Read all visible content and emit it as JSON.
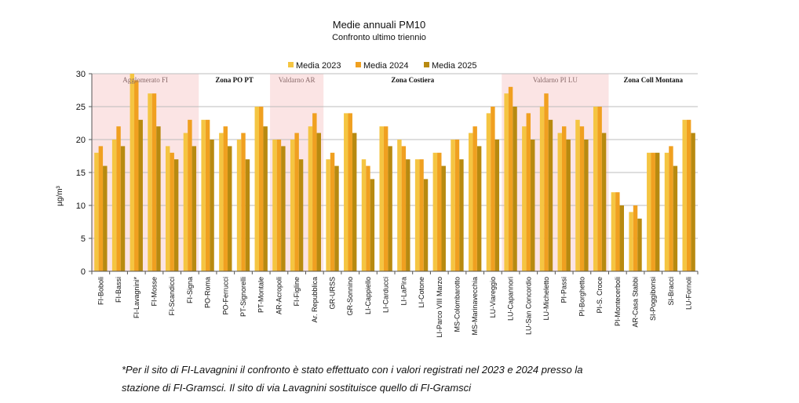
{
  "chart_data": {
    "type": "bar",
    "title": "Medie annuali PM10",
    "subtitle": "Confronto ultimo triennio",
    "ylabel": "µg/m³",
    "ylim": [
      0,
      30
    ],
    "yticks": [
      0,
      5,
      10,
      15,
      20,
      25,
      30
    ],
    "grid": true,
    "legend_position": "top",
    "categories": [
      "FI-Boboli",
      "FI-Bassi",
      "FI-Lavagnini*",
      "FI-Mosse",
      "FI-Scandicci",
      "FI-Signa",
      "PO-Roma",
      "PO-Ferrucci",
      "PT-Signorelli",
      "PT-Montale",
      "AR-Acropoli",
      "FI-Figline",
      "Ar. Repubblica",
      "GR-URSS",
      "GR-Sonnino",
      "LI-Cappiello",
      "LI-Carducci",
      "LI-LaPira",
      "LI-Cotone",
      "LI-Parco VIII Marzo",
      "MS-Colombarotto",
      "MS-Marinavecchia",
      "LU-Viareggio",
      "LU-Capannori",
      "LU-San Concordio",
      "LU-Micheletto",
      "PI-Passi",
      "PI-Borghetto",
      "PI-S. Croce",
      "PI-Montecerboli",
      "AR-Casa Stabbi",
      "SI-Poggibonsi",
      "SI-Bracci",
      "LU-Fornoli"
    ],
    "series": [
      {
        "name": "Media 2023",
        "values": [
          18,
          20,
          30,
          27,
          19,
          21,
          23,
          21,
          20,
          25,
          20,
          20,
          22,
          17,
          24,
          17,
          22,
          20,
          17,
          18,
          20,
          21,
          24,
          27,
          22,
          25,
          21,
          23,
          25,
          12,
          9,
          18,
          18,
          23
        ]
      },
      {
        "name": "Media 2024",
        "values": [
          19,
          22,
          29,
          27,
          18,
          23,
          23,
          22,
          21,
          25,
          20,
          21,
          24,
          18,
          24,
          16,
          22,
          19,
          17,
          18,
          20,
          22,
          25,
          28,
          24,
          27,
          22,
          22,
          25,
          12,
          10,
          18,
          19,
          23
        ]
      },
      {
        "name": "Media  2025",
        "values": [
          16,
          19,
          23,
          22,
          17,
          19,
          20,
          19,
          17,
          22,
          19,
          17,
          21,
          16,
          21,
          14,
          19,
          17,
          14,
          16,
          17,
          19,
          20,
          25,
          20,
          23,
          20,
          20,
          21,
          10,
          8,
          18,
          16,
          21
        ]
      }
    ],
    "colors": {
      "s2023": "#f5c542",
      "s2024": "#f0a020",
      "s2025": "#b88a10",
      "zone_pink": "#fbe4e4",
      "grid": "#bdbdbd",
      "axis": "#555555"
    },
    "zones": [
      {
        "label": "Agglomerato FI",
        "start": 0,
        "end": 5,
        "shaded": true
      },
      {
        "label": "Zona PO PT",
        "start": 6,
        "end": 9,
        "shaded": false
      },
      {
        "label": "Valdarno AR",
        "start": 10,
        "end": 12,
        "shaded": true
      },
      {
        "label": "Zona Costiera",
        "start": 13,
        "end": 22,
        "shaded": false
      },
      {
        "label": "Valdarno PI LU",
        "start": 23,
        "end": 28,
        "shaded": true
      },
      {
        "label": "Zona Coll Montana",
        "start": 29,
        "end": 33,
        "shaded": false
      }
    ]
  },
  "footnote": {
    "line1": "*Per il sito di FI-Lavagnini il confronto è stato effettuato con i valori registrati nel 2023 e 2024 presso la",
    "line2": "stazione di FI-Gramsci. Il sito di via Lavagnini sostituisce quello di FI-Gramsci"
  }
}
